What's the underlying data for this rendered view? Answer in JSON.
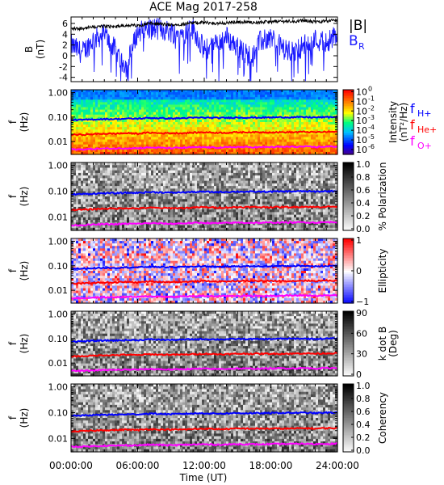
{
  "title": "ACE Mag 2017-258",
  "time_axis": {
    "ticks": [
      "00:00:00",
      "06:00:00",
      "12:00:00",
      "18:00:00",
      "24:00:00"
    ],
    "tick_hours": [
      0,
      6,
      12,
      18,
      24
    ],
    "label": "Time (UT)",
    "range_hours": [
      0,
      24
    ]
  },
  "freq_axis": {
    "ticks": [
      "1.00",
      "0.10",
      "0.01"
    ],
    "tick_values": [
      1.0,
      0.1,
      0.01
    ],
    "range": [
      0.003,
      1.3
    ],
    "scale": "log"
  },
  "legend_b": {
    "total": "|B|",
    "radial": "B",
    "radial_sub": "R"
  },
  "legend_f": {
    "h_main": "f",
    "h_sub": "H+",
    "he_main": "f",
    "he_sub": "He+",
    "o_main": "f",
    "o_sub": "O+"
  },
  "colors": {
    "total": "#000000",
    "radial": "#1a1aff",
    "h": "#0000ff",
    "he": "#ff0000",
    "o": "#ff00ff"
  },
  "chart_data": [
    {
      "type": "line",
      "ylabel_main": "B",
      "ylabel_unit": "(nT)",
      "ylim": [
        -4.8,
        7.2
      ],
      "yticks": [
        -4,
        -2,
        0,
        2,
        4,
        6
      ],
      "series": [
        {
          "name": "|B|",
          "x": [
            0,
            1,
            2,
            3,
            4,
            5,
            6,
            7,
            8,
            9,
            10,
            11,
            12,
            13,
            14,
            15,
            16,
            17,
            18,
            19,
            20,
            21,
            22,
            23,
            24
          ],
          "values": [
            5.0,
            5.1,
            5.3,
            5.5,
            5.4,
            5.7,
            5.6,
            6.0,
            5.9,
            5.7,
            5.9,
            6.1,
            6.2,
            6.0,
            6.1,
            6.3,
            6.2,
            6.2,
            6.3,
            6.4,
            6.4,
            6.5,
            6.3,
            6.5,
            6.6
          ]
        },
        {
          "name": "B_R",
          "x": [
            0,
            1,
            2,
            3,
            4,
            5,
            6,
            7,
            8,
            9,
            10,
            11,
            12,
            13,
            14,
            15,
            16,
            17,
            18,
            19,
            20,
            21,
            22,
            23,
            24
          ],
          "values": [
            2.0,
            0.5,
            3.0,
            4.0,
            1.0,
            -2.0,
            4.5,
            5.0,
            5.0,
            4.5,
            4.0,
            5.0,
            1.0,
            2.0,
            3.5,
            1.5,
            0.0,
            2.5,
            3.5,
            1.5,
            0.5,
            2.0,
            3.0,
            2.5,
            4.0
          ]
        }
      ]
    },
    {
      "type": "heatmap",
      "ylabel_main": "f",
      "ylabel_unit": "(Hz)",
      "colorbar_label": "Intensity",
      "colorbar_unit": "(nT²/Hz)",
      "colorbar_ticks": [
        {
          "base": "10",
          "exp": "0"
        },
        {
          "base": "10",
          "exp": "-1"
        },
        {
          "base": "10",
          "exp": "-2"
        },
        {
          "base": "10",
          "exp": "-3"
        },
        {
          "base": "10",
          "exp": "-4"
        },
        {
          "base": "10",
          "exp": "-5"
        },
        {
          "base": "10",
          "exp": "-6"
        }
      ],
      "colorbar_range_log10": [
        -6.5,
        0.2
      ],
      "colormap": "rainbow"
    },
    {
      "type": "heatmap",
      "ylabel_main": "f",
      "ylabel_unit": "(Hz)",
      "colorbar_label": "% Polarization",
      "colorbar_ticks": [
        "1.0",
        "0.8",
        "0.6",
        "0.4",
        "0.2",
        "0.0"
      ],
      "colorbar_range": [
        0,
        1
      ],
      "colormap": "gray"
    },
    {
      "type": "heatmap",
      "ylabel_main": "f",
      "ylabel_unit": "(Hz)",
      "colorbar_label": "Ellipticity",
      "colorbar_ticks": [
        "1",
        "0",
        "−1"
      ],
      "colorbar_range": [
        -1,
        1
      ],
      "colormap": "bwr"
    },
    {
      "type": "heatmap",
      "ylabel_main": "f",
      "ylabel_unit": "(Hz)",
      "colorbar_label": "k dot B",
      "colorbar_unit": "(Deg)",
      "colorbar_ticks": [
        "90",
        "60",
        "30",
        "0"
      ],
      "colorbar_range": [
        0,
        90
      ],
      "colormap": "gray"
    },
    {
      "type": "heatmap",
      "ylabel_main": "f",
      "ylabel_unit": "(Hz)",
      "colorbar_label": "Coherency",
      "colorbar_ticks": [
        "1.0",
        "0.8",
        "0.6",
        "0.4",
        "0.2",
        "0.0"
      ],
      "colorbar_range": [
        0,
        1
      ],
      "colormap": "gray"
    }
  ],
  "gyrofrequency_lines": {
    "x": [
      0,
      1,
      2,
      3,
      4,
      5,
      6,
      7,
      8,
      9,
      10,
      11,
      12,
      13,
      14,
      15,
      16,
      17,
      18,
      19,
      20,
      21,
      22,
      23,
      24
    ],
    "f_H": [
      0.076,
      0.077,
      0.08,
      0.083,
      0.083,
      0.086,
      0.086,
      0.092,
      0.09,
      0.087,
      0.09,
      0.093,
      0.095,
      0.092,
      0.093,
      0.096,
      0.095,
      0.095,
      0.096,
      0.098,
      0.098,
      0.099,
      0.096,
      0.099,
      0.101
    ],
    "f_He": [
      0.019,
      0.019,
      0.02,
      0.021,
      0.021,
      0.022,
      0.021,
      0.023,
      0.022,
      0.022,
      0.022,
      0.023,
      0.024,
      0.023,
      0.023,
      0.024,
      0.024,
      0.024,
      0.024,
      0.024,
      0.024,
      0.025,
      0.024,
      0.025,
      0.025
    ],
    "f_O": [
      0.0048,
      0.0048,
      0.005,
      0.0052,
      0.0052,
      0.0054,
      0.0054,
      0.0057,
      0.0056,
      0.0054,
      0.0056,
      0.0058,
      0.0059,
      0.0057,
      0.0058,
      0.006,
      0.0059,
      0.0059,
      0.006,
      0.0061,
      0.0061,
      0.0062,
      0.006,
      0.0062,
      0.0063
    ]
  }
}
